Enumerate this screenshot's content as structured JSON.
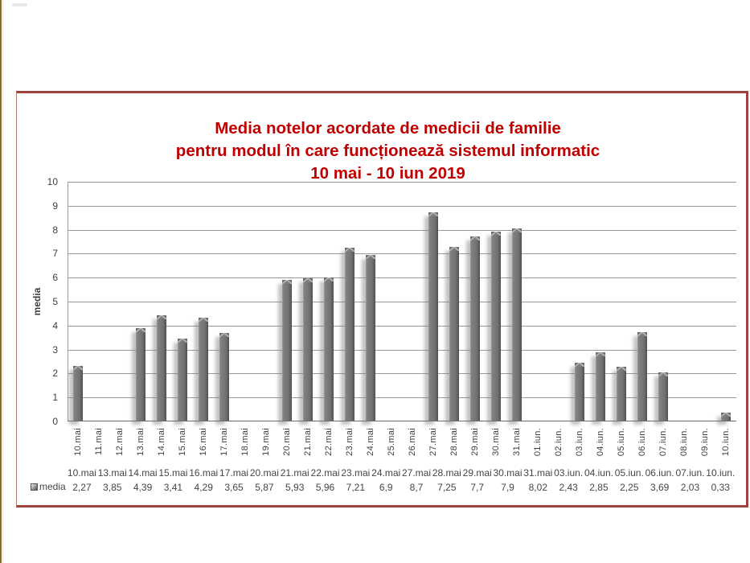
{
  "page": {
    "background": "#ffffff",
    "left_edge_color": "#8a7030",
    "frame_border_color": "#9d423f"
  },
  "chart_data": {
    "type": "bar",
    "title_lines": [
      "Media notelor acordate de medicii de familie",
      "pentru modul în care funcționează sistemul informatic",
      "10 mai - 10 iun 2019"
    ],
    "title_color": "#c00000",
    "ylabel": "media",
    "ylim": [
      0,
      10
    ],
    "ytick_step": 1,
    "yticks": [
      0,
      1,
      2,
      3,
      4,
      5,
      6,
      7,
      8,
      9,
      10
    ],
    "grid": true,
    "bar_color": "#808080",
    "categories": [
      "10.mai",
      "11.mai",
      "12.mai",
      "13.mai",
      "14.mai",
      "15.mai",
      "16.mai",
      "17.mai",
      "18.mai",
      "19.mai",
      "20.mai",
      "21.mai",
      "22.mai",
      "23.mai",
      "24.mai",
      "25.mai",
      "26.mai",
      "27.mai",
      "28.mai",
      "29.mai",
      "30.mai",
      "31.mai",
      "01.iun.",
      "02.iun.",
      "03.iun.",
      "04.iun.",
      "05.iun.",
      "06.iun.",
      "07.iun.",
      "08.iun.",
      "09.iun.",
      "10.iun."
    ],
    "values": [
      2.27,
      null,
      null,
      3.85,
      4.39,
      3.41,
      4.29,
      3.65,
      null,
      null,
      5.87,
      5.93,
      5.96,
      7.21,
      6.9,
      null,
      null,
      8.7,
      7.25,
      7.7,
      7.9,
      8.02,
      null,
      null,
      2.43,
      2.85,
      2.25,
      3.69,
      2.03,
      null,
      null,
      0.33
    ],
    "legend": {
      "position": "bottom-left",
      "label": "media"
    },
    "data_table": {
      "columns": [
        "10.mai",
        "13.mai",
        "14.mai",
        "15.mai",
        "16.mai",
        "17.mai",
        "20.mai",
        "21.mai",
        "22.mai",
        "23.mai",
        "24.mai",
        "27.mai",
        "28.mai",
        "29.mai",
        "30.mai",
        "31.mai",
        "03.iun.",
        "04.iun.",
        "05.iun.",
        "06.iun.",
        "07.iun.",
        "10.iun."
      ],
      "values_display": [
        "2,27",
        "3,85",
        "4,39",
        "3,41",
        "4,29",
        "3,65",
        "5,87",
        "5,93",
        "5,96",
        "7,21",
        "6,9",
        "8,7",
        "7,25",
        "7,7",
        "7,9",
        "8,02",
        "2,43",
        "2,85",
        "2,25",
        "3,69",
        "2,03",
        "0,33"
      ]
    }
  }
}
